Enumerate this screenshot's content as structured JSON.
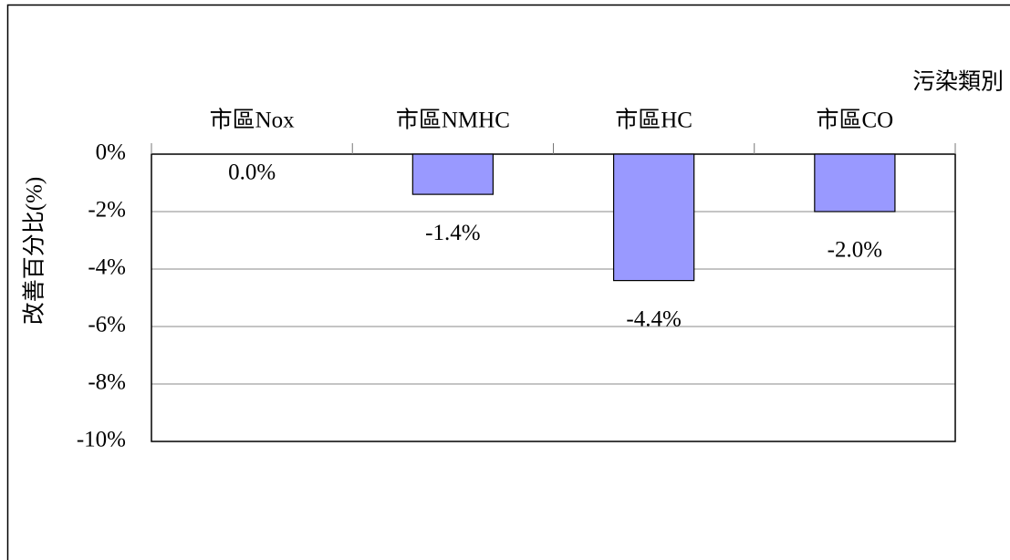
{
  "chart_data": {
    "type": "bar",
    "ylabel": "改善百分比(%)",
    "xlabel": "污染類別",
    "categories": [
      "市區Nox",
      "市區NMHC",
      "市區HC",
      "市區CO"
    ],
    "values": [
      0,
      -1.4,
      -4.4,
      -2.0
    ],
    "value_labels": [
      "0.0%",
      "-1.4%",
      "-4.4%",
      "-2.0%"
    ],
    "color": "#9999ff",
    "ylim": [
      -10,
      0
    ],
    "yticks": [
      {
        "value": 0,
        "label": "0%"
      },
      {
        "value": -2,
        "label": "-2%"
      },
      {
        "value": -4,
        "label": "-4%"
      },
      {
        "value": -6,
        "label": "-6%"
      },
      {
        "value": -8,
        "label": "-8%"
      },
      {
        "value": -10,
        "label": "-10%"
      }
    ],
    "grid": true
  }
}
